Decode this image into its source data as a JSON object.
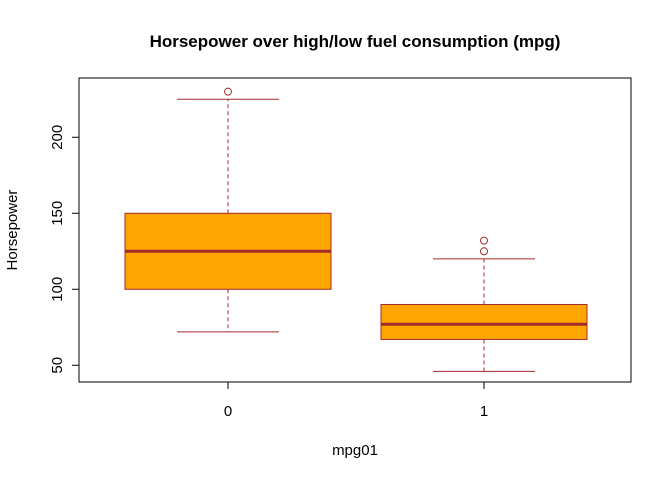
{
  "chart_data": {
    "type": "boxplot",
    "title": "Horsepower over high/low fuel consumption (mpg)",
    "xlabel": "mpg01",
    "ylabel": "Horsepower",
    "categories": [
      "0",
      "1"
    ],
    "y_ticks": [
      50,
      100,
      150,
      200
    ],
    "ylim": [
      39,
      239
    ],
    "grid": false,
    "boxes": [
      {
        "category": "0",
        "whisker_low": 72,
        "q1": 100,
        "median": 125,
        "q3": 150,
        "whisker_high": 225,
        "outliers": [
          230
        ]
      },
      {
        "category": "1",
        "whisker_low": 46,
        "q1": 67,
        "median": 77,
        "q3": 90,
        "whisker_high": 120,
        "outliers": [
          125,
          132
        ]
      }
    ],
    "colors": {
      "box_fill": "#FFA500",
      "box_border": "#A52A2A",
      "median": "#A52A2A",
      "whisker": "#A52A2A",
      "outlier": "#A52A2A",
      "axis": "#000000"
    }
  }
}
